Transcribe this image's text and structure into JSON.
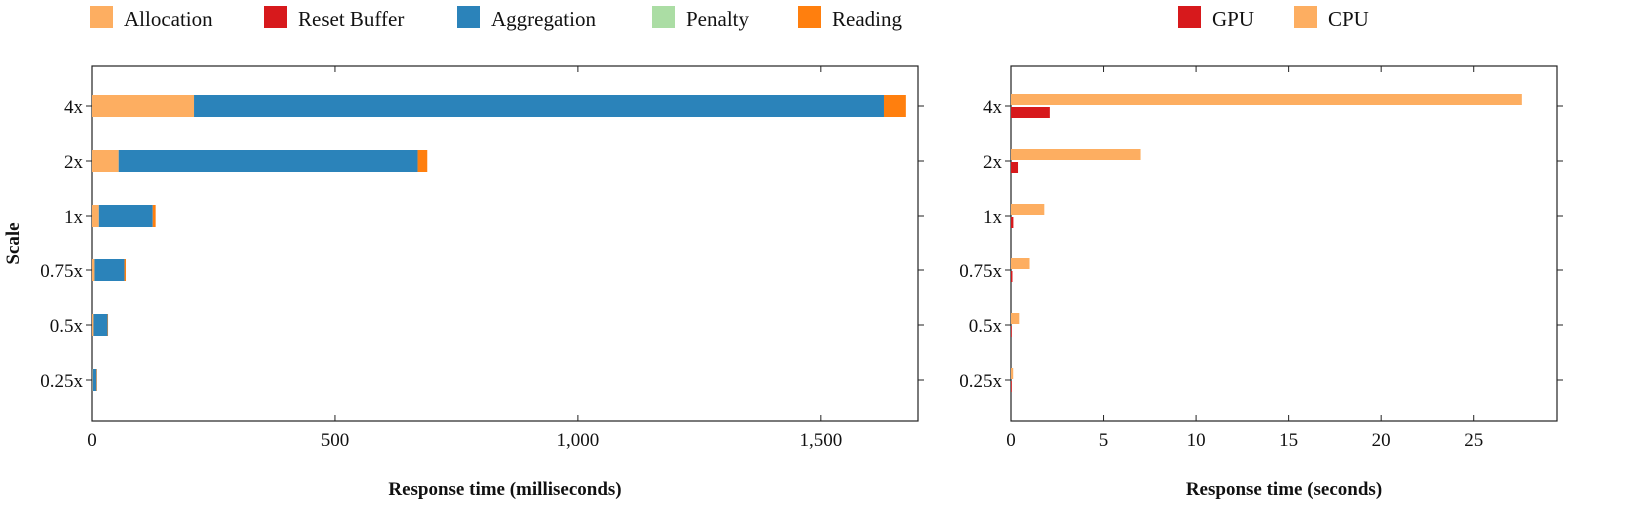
{
  "chart_data": [
    {
      "type": "bar",
      "orientation": "horizontal",
      "stacked": true,
      "categories": [
        "0.25x",
        "0.5x",
        "0.75x",
        "1x",
        "2x",
        "4x"
      ],
      "series": [
        {
          "name": "Allocation",
          "color": "#fdae61",
          "values": [
            1,
            3,
            5,
            14,
            55,
            210
          ]
        },
        {
          "name": "Reset Buffer",
          "color": "#d7191c",
          "values": [
            0,
            0,
            0,
            0,
            0,
            0
          ]
        },
        {
          "name": "Aggregation",
          "color": "#2b83ba",
          "values": [
            8,
            29,
            62,
            111,
            615,
            1420
          ]
        },
        {
          "name": "Penalty",
          "color": "#abdda4",
          "values": [
            0,
            0,
            0,
            0,
            0,
            0
          ]
        },
        {
          "name": "Reading",
          "color": "#ff7f0e",
          "values": [
            1,
            1,
            3,
            6,
            20,
            45
          ]
        }
      ],
      "xlabel": "Response time (milliseconds)",
      "ylabel": "Scale",
      "xlim": [
        0,
        1700
      ],
      "xticks": [
        0,
        500,
        1000,
        1500
      ],
      "xtick_labels": [
        "0",
        "500",
        "1,000",
        "1,500"
      ],
      "legend_position": "top"
    },
    {
      "type": "bar",
      "orientation": "horizontal",
      "stacked": false,
      "categories": [
        "0.25x",
        "0.5x",
        "0.75x",
        "1x",
        "2x",
        "4x"
      ],
      "series": [
        {
          "name": "GPU",
          "color": "#d7191c",
          "values": [
            0.01,
            0.04,
            0.08,
            0.13,
            0.38,
            2.1
          ]
        },
        {
          "name": "CPU",
          "color": "#fdae61",
          "values": [
            0.12,
            0.45,
            1.0,
            1.8,
            7.0,
            27.6
          ]
        }
      ],
      "xlabel": "Response time (seconds)",
      "ylabel": "",
      "xlim": [
        0,
        29.5
      ],
      "xticks": [
        0,
        5,
        10,
        15,
        20,
        25
      ],
      "xtick_labels": [
        "0",
        "5",
        "10",
        "15",
        "20",
        "25"
      ],
      "legend_position": "top"
    }
  ]
}
